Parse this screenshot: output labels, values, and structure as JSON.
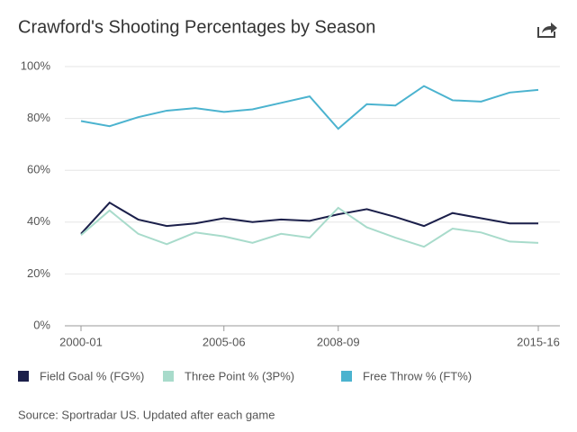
{
  "chart_data": {
    "type": "line",
    "title": "Crawford's Shooting Percentages by Season",
    "categories": [
      "2000-01",
      null,
      null,
      null,
      null,
      "2005-06",
      null,
      null,
      null,
      "2008-09",
      null,
      null,
      null,
      null,
      null,
      null,
      "2015-16"
    ],
    "series": [
      {
        "name": "Field Goal % (FG%)",
        "color": "#1b1f4a",
        "values": [
          35.5,
          47.5,
          41,
          38.5,
          39.5,
          41.5,
          40,
          41,
          40.5,
          43,
          45,
          42,
          38.5,
          43.5,
          41.5,
          39.5,
          39.5
        ]
      },
      {
        "name": "Three Point % (3P%)",
        "color": "#a8dbcb",
        "values": [
          35,
          44.5,
          35.5,
          31.5,
          36,
          34.5,
          32,
          35.5,
          34,
          45.5,
          38,
          34,
          30.5,
          37.5,
          36,
          32.5,
          32
        ]
      },
      {
        "name": "Free Throw % (FT%)",
        "color": "#4bb3cf",
        "values": [
          79,
          77,
          80.5,
          83,
          84,
          82.5,
          83.5,
          86,
          88.5,
          76,
          85.5,
          85,
          92.5,
          87,
          86.5,
          90,
          91
        ]
      }
    ],
    "ylim": [
      0,
      100
    ],
    "yticks": [
      {
        "value": 0,
        "label": "0%"
      },
      {
        "value": 20,
        "label": "20%"
      },
      {
        "value": 40,
        "label": "40%"
      },
      {
        "value": 60,
        "label": "60%"
      },
      {
        "value": 80,
        "label": "80%"
      },
      {
        "value": 100,
        "label": "100%"
      }
    ],
    "grid": true,
    "source": "Source: Sportradar US. Updated after each game"
  }
}
